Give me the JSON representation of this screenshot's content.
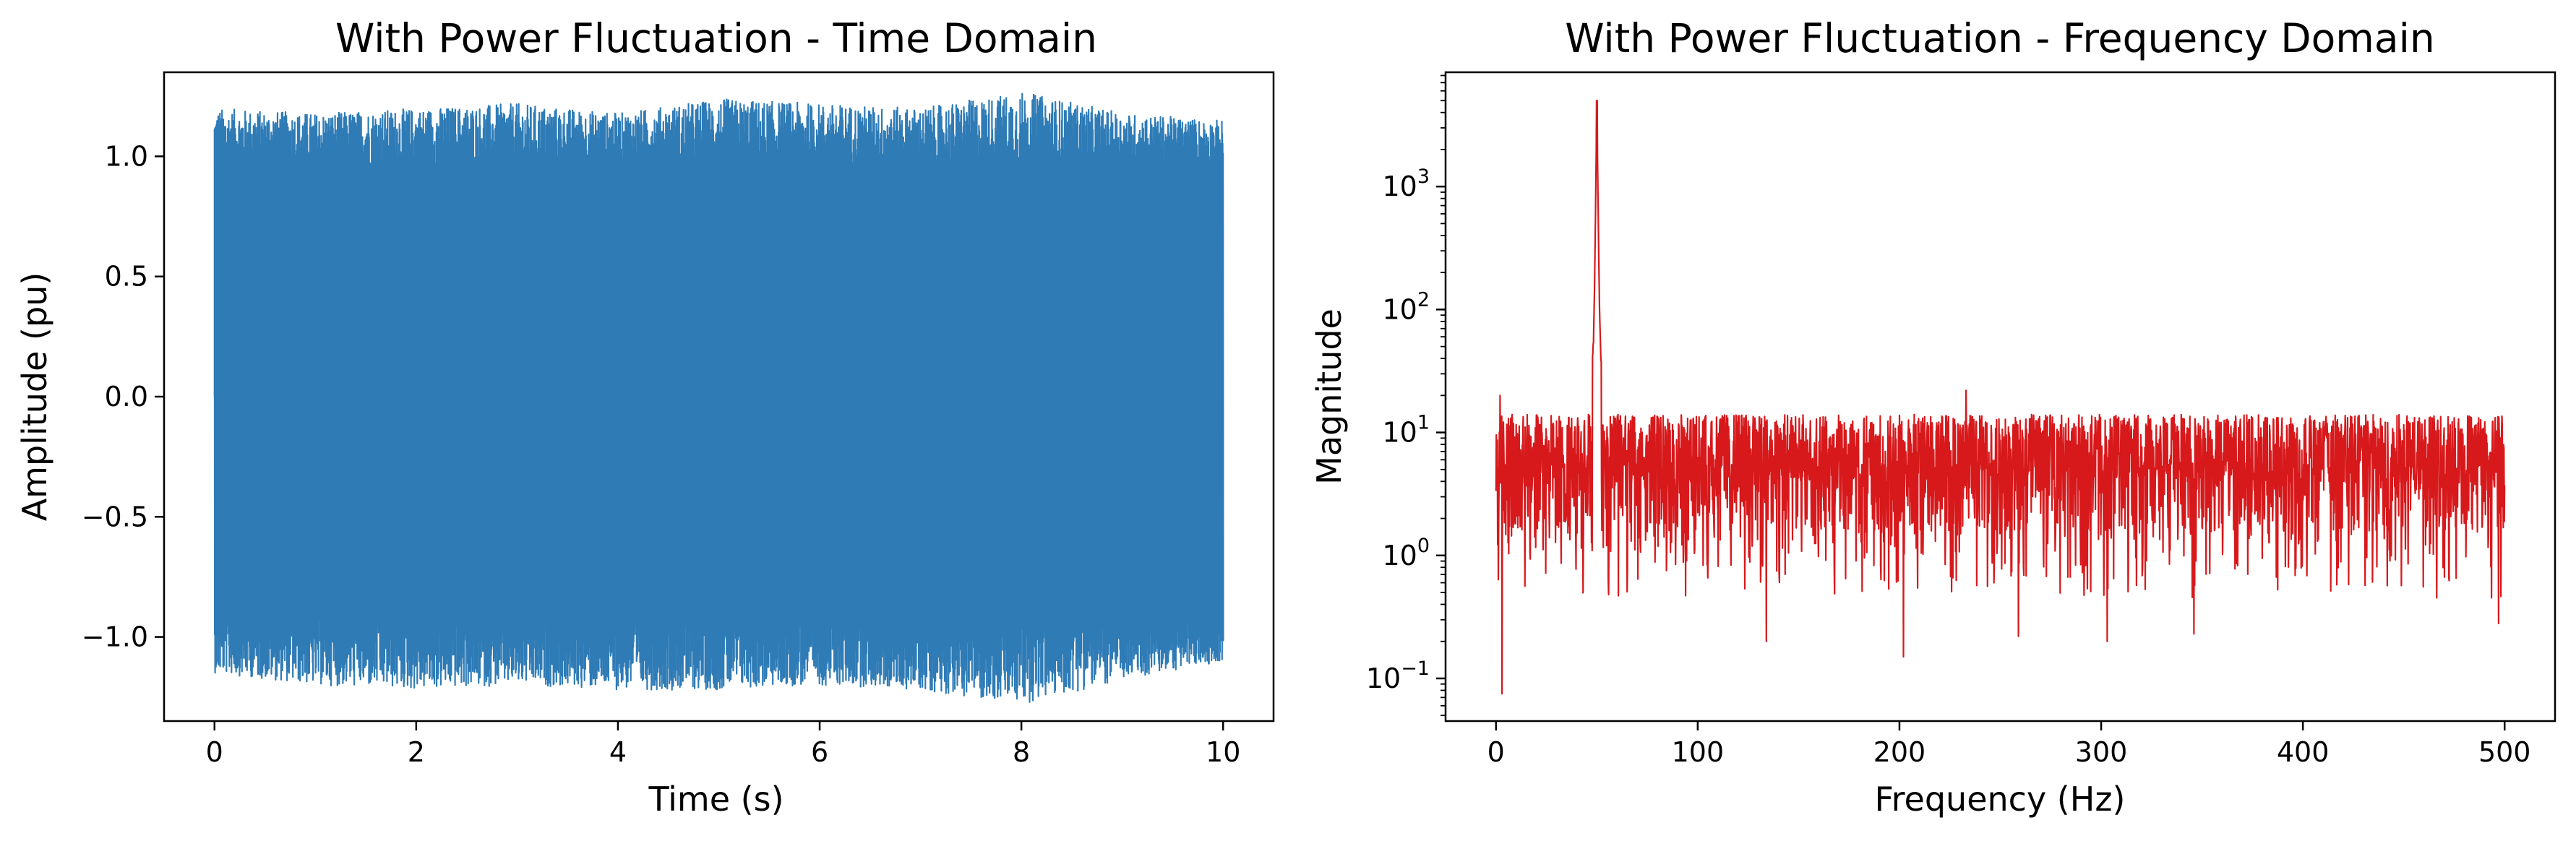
{
  "figure": {
    "background": "#ffffff"
  },
  "chart_data": [
    {
      "type": "line",
      "title": "With Power Fluctuation - Time Domain",
      "xlabel": "Time (s)",
      "ylabel": "Amplitude (pu)",
      "xlim": [
        -0.5,
        10.5
      ],
      "ylim": [
        -1.35,
        1.35
      ],
      "x_ticks": [
        0,
        2,
        4,
        6,
        8,
        10
      ],
      "x_tick_labels": [
        "0",
        "2",
        "4",
        "6",
        "8",
        "10"
      ],
      "y_ticks": [
        -1.0,
        -0.5,
        0.0,
        0.5,
        1.0
      ],
      "y_tick_labels": [
        "−1.0",
        "−0.5",
        "0.0",
        "0.5",
        "1.0"
      ],
      "grid": false,
      "series": [
        {
          "color": "#2e7bb6",
          "description": "dense oscillating signal, envelope about ±1.0 to ±1.25",
          "x_range": [
            0,
            10
          ],
          "upper_envelope": {
            "x": [
              0,
              1,
              2,
              3,
              4,
              5,
              6,
              7,
              8,
              9,
              10
            ],
            "y": [
              1.2,
              1.18,
              1.2,
              1.22,
              1.18,
              1.24,
              1.22,
              1.2,
              1.27,
              1.18,
              1.15
            ]
          },
          "lower_envelope": {
            "x": [
              0,
              1,
              2,
              3,
              4,
              5,
              6,
              7,
              8,
              9,
              10
            ],
            "y": [
              -1.15,
              -1.2,
              -1.22,
              -1.2,
              -1.22,
              -1.22,
              -1.2,
              -1.22,
              -1.28,
              -1.18,
              -1.1
            ]
          }
        }
      ]
    },
    {
      "type": "line",
      "title": "With Power Fluctuation - Frequency Domain",
      "xlabel": "Frequency (Hz)",
      "ylabel": "Magnitude",
      "yscale": "log",
      "xlim": [
        -25,
        525
      ],
      "ylim": [
        0.045,
        8500
      ],
      "x_ticks": [
        0,
        100,
        200,
        300,
        400,
        500
      ],
      "x_tick_labels": [
        "0",
        "100",
        "200",
        "300",
        "400",
        "500"
      ],
      "y_ticks": [
        0.1,
        1,
        10,
        100,
        1000
      ],
      "y_tick_labels": [
        {
          "base": "10",
          "exp": "−1"
        },
        {
          "base": "10",
          "exp": "0"
        },
        {
          "base": "10",
          "exp": "1"
        },
        {
          "base": "10",
          "exp": "2"
        },
        {
          "base": "10",
          "exp": "3"
        }
      ],
      "grid": false,
      "series": [
        {
          "color": "#d7191c",
          "description": "noise floor around 3–15 with a sharp peak at 50 Hz",
          "x_range": [
            0,
            500
          ],
          "peak": {
            "x": 50,
            "y": 5000
          },
          "notable_points": [
            {
              "x": 2,
              "y": 20
            },
            {
              "x": 3,
              "y": 0.075
            },
            {
              "x": 134,
              "y": 0.2
            },
            {
              "x": 202,
              "y": 0.15
            },
            {
              "x": 233,
              "y": 22
            },
            {
              "x": 259,
              "y": 0.22
            },
            {
              "x": 303,
              "y": 0.2
            },
            {
              "x": 346,
              "y": 0.23
            },
            {
              "x": 497,
              "y": 0.28
            }
          ]
        }
      ]
    }
  ]
}
